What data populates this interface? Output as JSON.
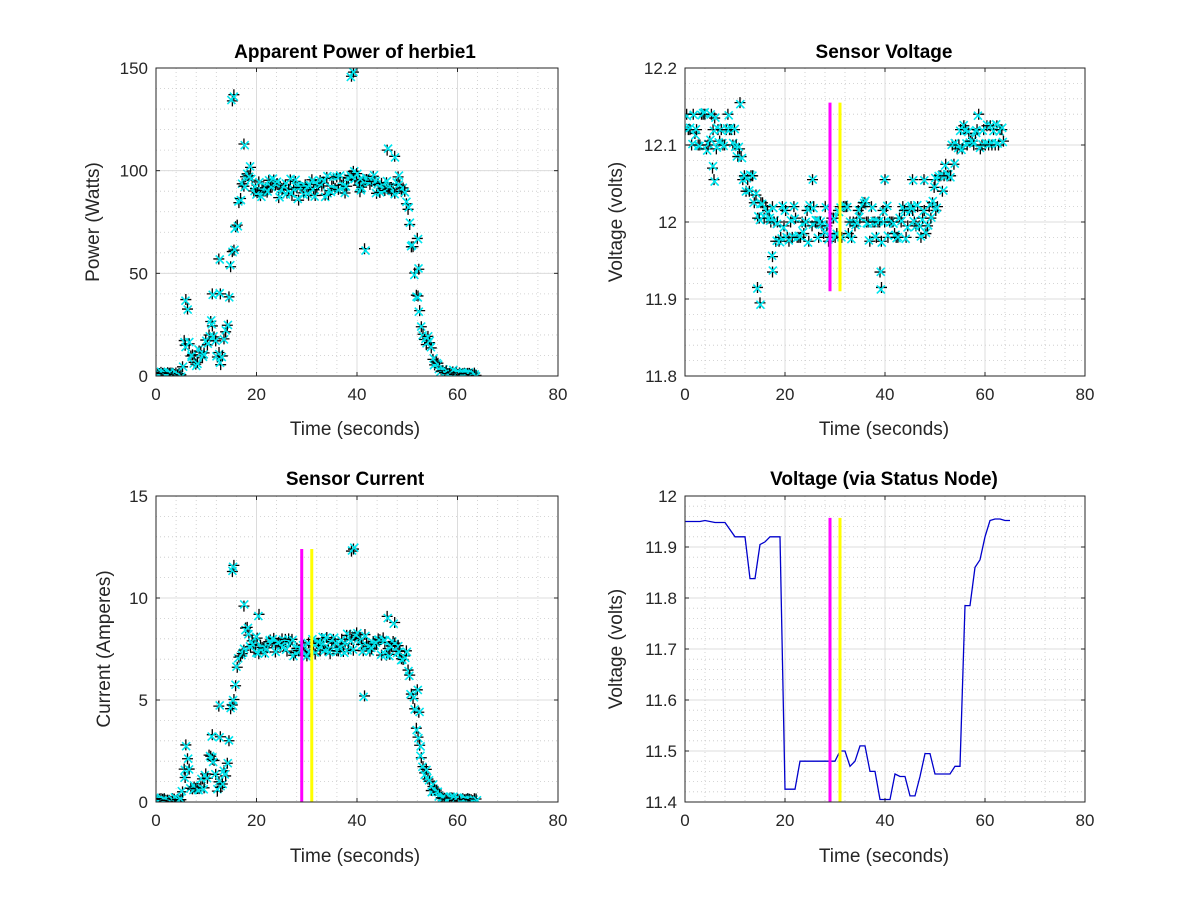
{
  "chart_data": [
    {
      "type": "scatter",
      "title": "Apparent Power of herbie1",
      "xlabel": "Time (seconds)",
      "ylabel": "Power (Watts)",
      "xlim": [
        0,
        80
      ],
      "ylim": [
        0,
        150
      ],
      "xticks": [
        0,
        20,
        40,
        60,
        80
      ],
      "yticks": [
        0,
        50,
        100,
        150
      ],
      "xtick_labels": [
        "0",
        "20",
        "40",
        "60",
        "80"
      ],
      "ytick_labels": [
        "0",
        "50",
        "100",
        "150"
      ],
      "grid": true,
      "markers": {
        "plus_color": "#000000",
        "x_color": "#00e5ee"
      },
      "profile": [
        [
          0,
          1
        ],
        [
          5,
          1
        ],
        [
          5.5,
          8
        ],
        [
          6,
          37
        ],
        [
          7,
          8
        ],
        [
          9,
          8
        ],
        [
          10,
          15
        ],
        [
          11,
          30
        ],
        [
          12,
          10
        ],
        [
          13,
          8
        ],
        [
          14,
          20
        ],
        [
          15,
          55
        ],
        [
          16,
          75
        ],
        [
          17,
          90
        ],
        [
          18,
          100
        ],
        [
          20,
          93
        ],
        [
          30,
          90
        ],
        [
          35,
          93
        ],
        [
          40,
          95
        ],
        [
          45,
          92
        ],
        [
          48,
          93
        ],
        [
          50,
          85
        ],
        [
          52,
          40
        ],
        [
          53,
          25
        ],
        [
          55,
          10
        ],
        [
          57,
          2
        ],
        [
          60,
          1
        ],
        [
          64,
          1
        ]
      ],
      "outliers": [
        [
          15.2,
          134
        ],
        [
          15.5,
          137
        ],
        [
          17.5,
          113
        ],
        [
          38.9,
          146
        ],
        [
          39.3,
          148
        ],
        [
          41.5,
          62
        ],
        [
          40.5,
          95
        ],
        [
          46,
          110
        ],
        [
          47.5,
          107
        ],
        [
          52,
          67
        ],
        [
          52.3,
          52
        ],
        [
          12.5,
          57
        ],
        [
          11.2,
          40
        ],
        [
          12.8,
          40
        ],
        [
          5.8,
          15
        ]
      ],
      "series_names": []
    },
    {
      "type": "scatter",
      "title": "Sensor Voltage",
      "xlabel": "Time (seconds)",
      "ylabel": "Voltage (volts)",
      "xlim": [
        0,
        80
      ],
      "ylim": [
        11.8,
        12.2
      ],
      "xticks": [
        0,
        20,
        40,
        60,
        80
      ],
      "yticks": [
        11.8,
        11.9,
        12,
        12.1,
        12.2
      ],
      "xtick_labels": [
        "0",
        "20",
        "40",
        "60",
        "80"
      ],
      "ytick_labels": [
        "11.8",
        "11.9",
        "12",
        "12.1",
        "12.2"
      ],
      "grid": true,
      "markers": {
        "plus_color": "#000000",
        "x_color": "#00e5ee"
      },
      "profile": [
        [
          0,
          12.115
        ],
        [
          10,
          12.115
        ],
        [
          12,
          12.06
        ],
        [
          14,
          12.03
        ],
        [
          15,
          12.01
        ],
        [
          20,
          12.0
        ],
        [
          30,
          12.0
        ],
        [
          40,
          12.0
        ],
        [
          48,
          12.0
        ],
        [
          50,
          12.02
        ],
        [
          52,
          12.06
        ],
        [
          54,
          12.1
        ],
        [
          56,
          12.115
        ],
        [
          64,
          12.115
        ]
      ],
      "outliers": [
        [
          11,
          12.155
        ],
        [
          5.5,
          12.07
        ],
        [
          5.8,
          12.055
        ],
        [
          14.5,
          11.915
        ],
        [
          15,
          11.895
        ],
        [
          17.5,
          11.935
        ],
        [
          17.5,
          11.955
        ],
        [
          39,
          11.935
        ],
        [
          39.3,
          11.915
        ],
        [
          25.5,
          12.055
        ],
        [
          40,
          12.055
        ],
        [
          45.5,
          12.055
        ],
        [
          47.8,
          12.055
        ],
        [
          50,
          12.055
        ]
      ],
      "vlines": [
        {
          "x": 29,
          "color": "#ff00ff",
          "y1": 11.91,
          "y2": 12.155
        },
        {
          "x": 31,
          "color": "#ffff00",
          "y1": 11.91,
          "y2": 12.155
        }
      ],
      "series_names": []
    },
    {
      "type": "scatter",
      "title": "Sensor Current",
      "xlabel": "Time (seconds)",
      "ylabel": "Current (Amperes)",
      "xlim": [
        0,
        80
      ],
      "ylim": [
        0,
        15
      ],
      "xticks": [
        0,
        20,
        40,
        60,
        80
      ],
      "yticks": [
        0,
        5,
        10,
        15
      ],
      "xtick_labels": [
        "0",
        "20",
        "40",
        "60",
        "80"
      ],
      "ytick_labels": [
        "0",
        "5",
        "10",
        "15"
      ],
      "grid": true,
      "markers": {
        "plus_color": "#000000",
        "x_color": "#00e5ee"
      },
      "profile": [
        [
          0,
          0.1
        ],
        [
          5,
          0.1
        ],
        [
          5.5,
          0.7
        ],
        [
          6,
          3.1
        ],
        [
          7,
          0.7
        ],
        [
          9,
          0.7
        ],
        [
          10,
          1.3
        ],
        [
          11,
          2.5
        ],
        [
          12,
          0.9
        ],
        [
          13,
          0.7
        ],
        [
          14,
          1.7
        ],
        [
          15,
          4.6
        ],
        [
          16,
          6.3
        ],
        [
          17,
          7.5
        ],
        [
          18,
          8.3
        ],
        [
          20,
          7.7
        ],
        [
          30,
          7.5
        ],
        [
          35,
          7.7
        ],
        [
          40,
          7.9
        ],
        [
          45,
          7.6
        ],
        [
          48,
          7.7
        ],
        [
          50,
          7.0
        ],
        [
          52,
          3.3
        ],
        [
          53,
          2.1
        ],
        [
          55,
          0.8
        ],
        [
          57,
          0.2
        ],
        [
          60,
          0.1
        ],
        [
          64,
          0.1
        ]
      ],
      "outliers": [
        [
          15.2,
          11.3
        ],
        [
          15.5,
          11.6
        ],
        [
          17.5,
          9.6
        ],
        [
          38.9,
          12.3
        ],
        [
          39.3,
          12.4
        ],
        [
          41.5,
          5.2
        ],
        [
          46,
          9.1
        ],
        [
          47.5,
          8.8
        ],
        [
          52,
          5.5
        ],
        [
          52.3,
          4.4
        ],
        [
          12.5,
          4.7
        ],
        [
          11.2,
          3.3
        ],
        [
          12.8,
          3.2
        ],
        [
          5.8,
          1.2
        ],
        [
          20.5,
          9.2
        ]
      ],
      "vlines": [
        {
          "x": 29,
          "color": "#ff00ff",
          "y1": 0,
          "y2": 12.4
        },
        {
          "x": 31,
          "color": "#ffff00",
          "y1": 0,
          "y2": 12.4
        }
      ],
      "series_names": []
    },
    {
      "type": "line",
      "title": "Voltage (via Status Node)",
      "xlabel": "Time (seconds)",
      "ylabel": "Voltage (volts)",
      "xlim": [
        0,
        80
      ],
      "ylim": [
        11.4,
        12
      ],
      "xticks": [
        0,
        20,
        40,
        60,
        80
      ],
      "yticks": [
        11.4,
        11.5,
        11.6,
        11.7,
        11.8,
        11.9,
        12
      ],
      "xtick_labels": [
        "0",
        "20",
        "40",
        "60",
        "80"
      ],
      "ytick_labels": [
        "11.4",
        "11.5",
        "11.6",
        "11.7",
        "11.8",
        "11.9",
        "12"
      ],
      "grid": true,
      "line_color": "#0000cc",
      "x": [
        0,
        2,
        3,
        4,
        6,
        8,
        10,
        12,
        13,
        14,
        15,
        16,
        17,
        18,
        19,
        20,
        21,
        22,
        23,
        24,
        25,
        26,
        27,
        28,
        29,
        30,
        31,
        32,
        33,
        34,
        35,
        36,
        37,
        38,
        39,
        40,
        41,
        42,
        43,
        44,
        45,
        46,
        47,
        48,
        49,
        50,
        51,
        52,
        53,
        54,
        55,
        56,
        57,
        58,
        59,
        60,
        61,
        62,
        63,
        64,
        65
      ],
      "y": [
        11.95,
        11.95,
        11.95,
        11.952,
        11.948,
        11.948,
        11.92,
        11.92,
        11.838,
        11.838,
        11.905,
        11.91,
        11.92,
        11.92,
        11.92,
        11.425,
        11.425,
        11.425,
        11.48,
        11.48,
        11.48,
        11.48,
        11.48,
        11.48,
        11.48,
        11.48,
        11.5,
        11.5,
        11.47,
        11.48,
        11.51,
        11.51,
        11.46,
        11.46,
        11.405,
        11.405,
        11.405,
        11.455,
        11.45,
        11.45,
        11.412,
        11.412,
        11.45,
        11.495,
        11.495,
        11.455,
        11.455,
        11.455,
        11.455,
        11.47,
        11.47,
        11.785,
        11.785,
        11.86,
        11.875,
        11.92,
        11.952,
        11.955,
        11.955,
        11.952,
        11.952
      ],
      "vlines": [
        {
          "x": 29,
          "color": "#ff00ff",
          "y1": 11.4,
          "y2": 11.957
        },
        {
          "x": 31,
          "color": "#ffff00",
          "y1": 11.4,
          "y2": 11.957
        }
      ],
      "series_names": []
    }
  ]
}
